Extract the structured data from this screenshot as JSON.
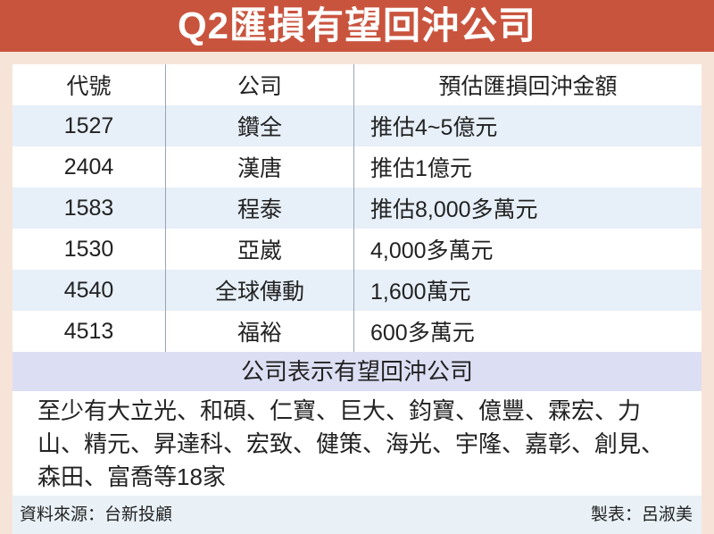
{
  "title": "Q2匯損有望回沖公司",
  "table": {
    "headers": [
      "代號",
      "公司",
      "預估匯損回沖金額"
    ],
    "rows": [
      [
        "1527",
        "鑽全",
        "推估4~5億元"
      ],
      [
        "2404",
        "漢唐",
        "推估1億元"
      ],
      [
        "1583",
        "程泰",
        "推估8,000多萬元"
      ],
      [
        "1530",
        "亞崴",
        "4,000多萬元"
      ],
      [
        "4540",
        "全球傳動",
        "1,600萬元"
      ],
      [
        "4513",
        "福裕",
        "600多萬元"
      ]
    ]
  },
  "subheading": "公司表示有望回沖公司",
  "company_list": "至少有大立光、和碩、仁寶、巨大、鈞寶、億豐、霖宏、力山、精元、昇達科、宏致、健策、海光、宇隆、嘉彰、創見、森田、富喬等18家",
  "footer": {
    "source": "資料來源：台新投顧",
    "author": "製表：呂淑美"
  },
  "colors": {
    "title_bar": "#c9543e",
    "background": "#f7e4d9",
    "row_alt": "#e7eff8",
    "subheading_bg": "#dcdff3"
  }
}
